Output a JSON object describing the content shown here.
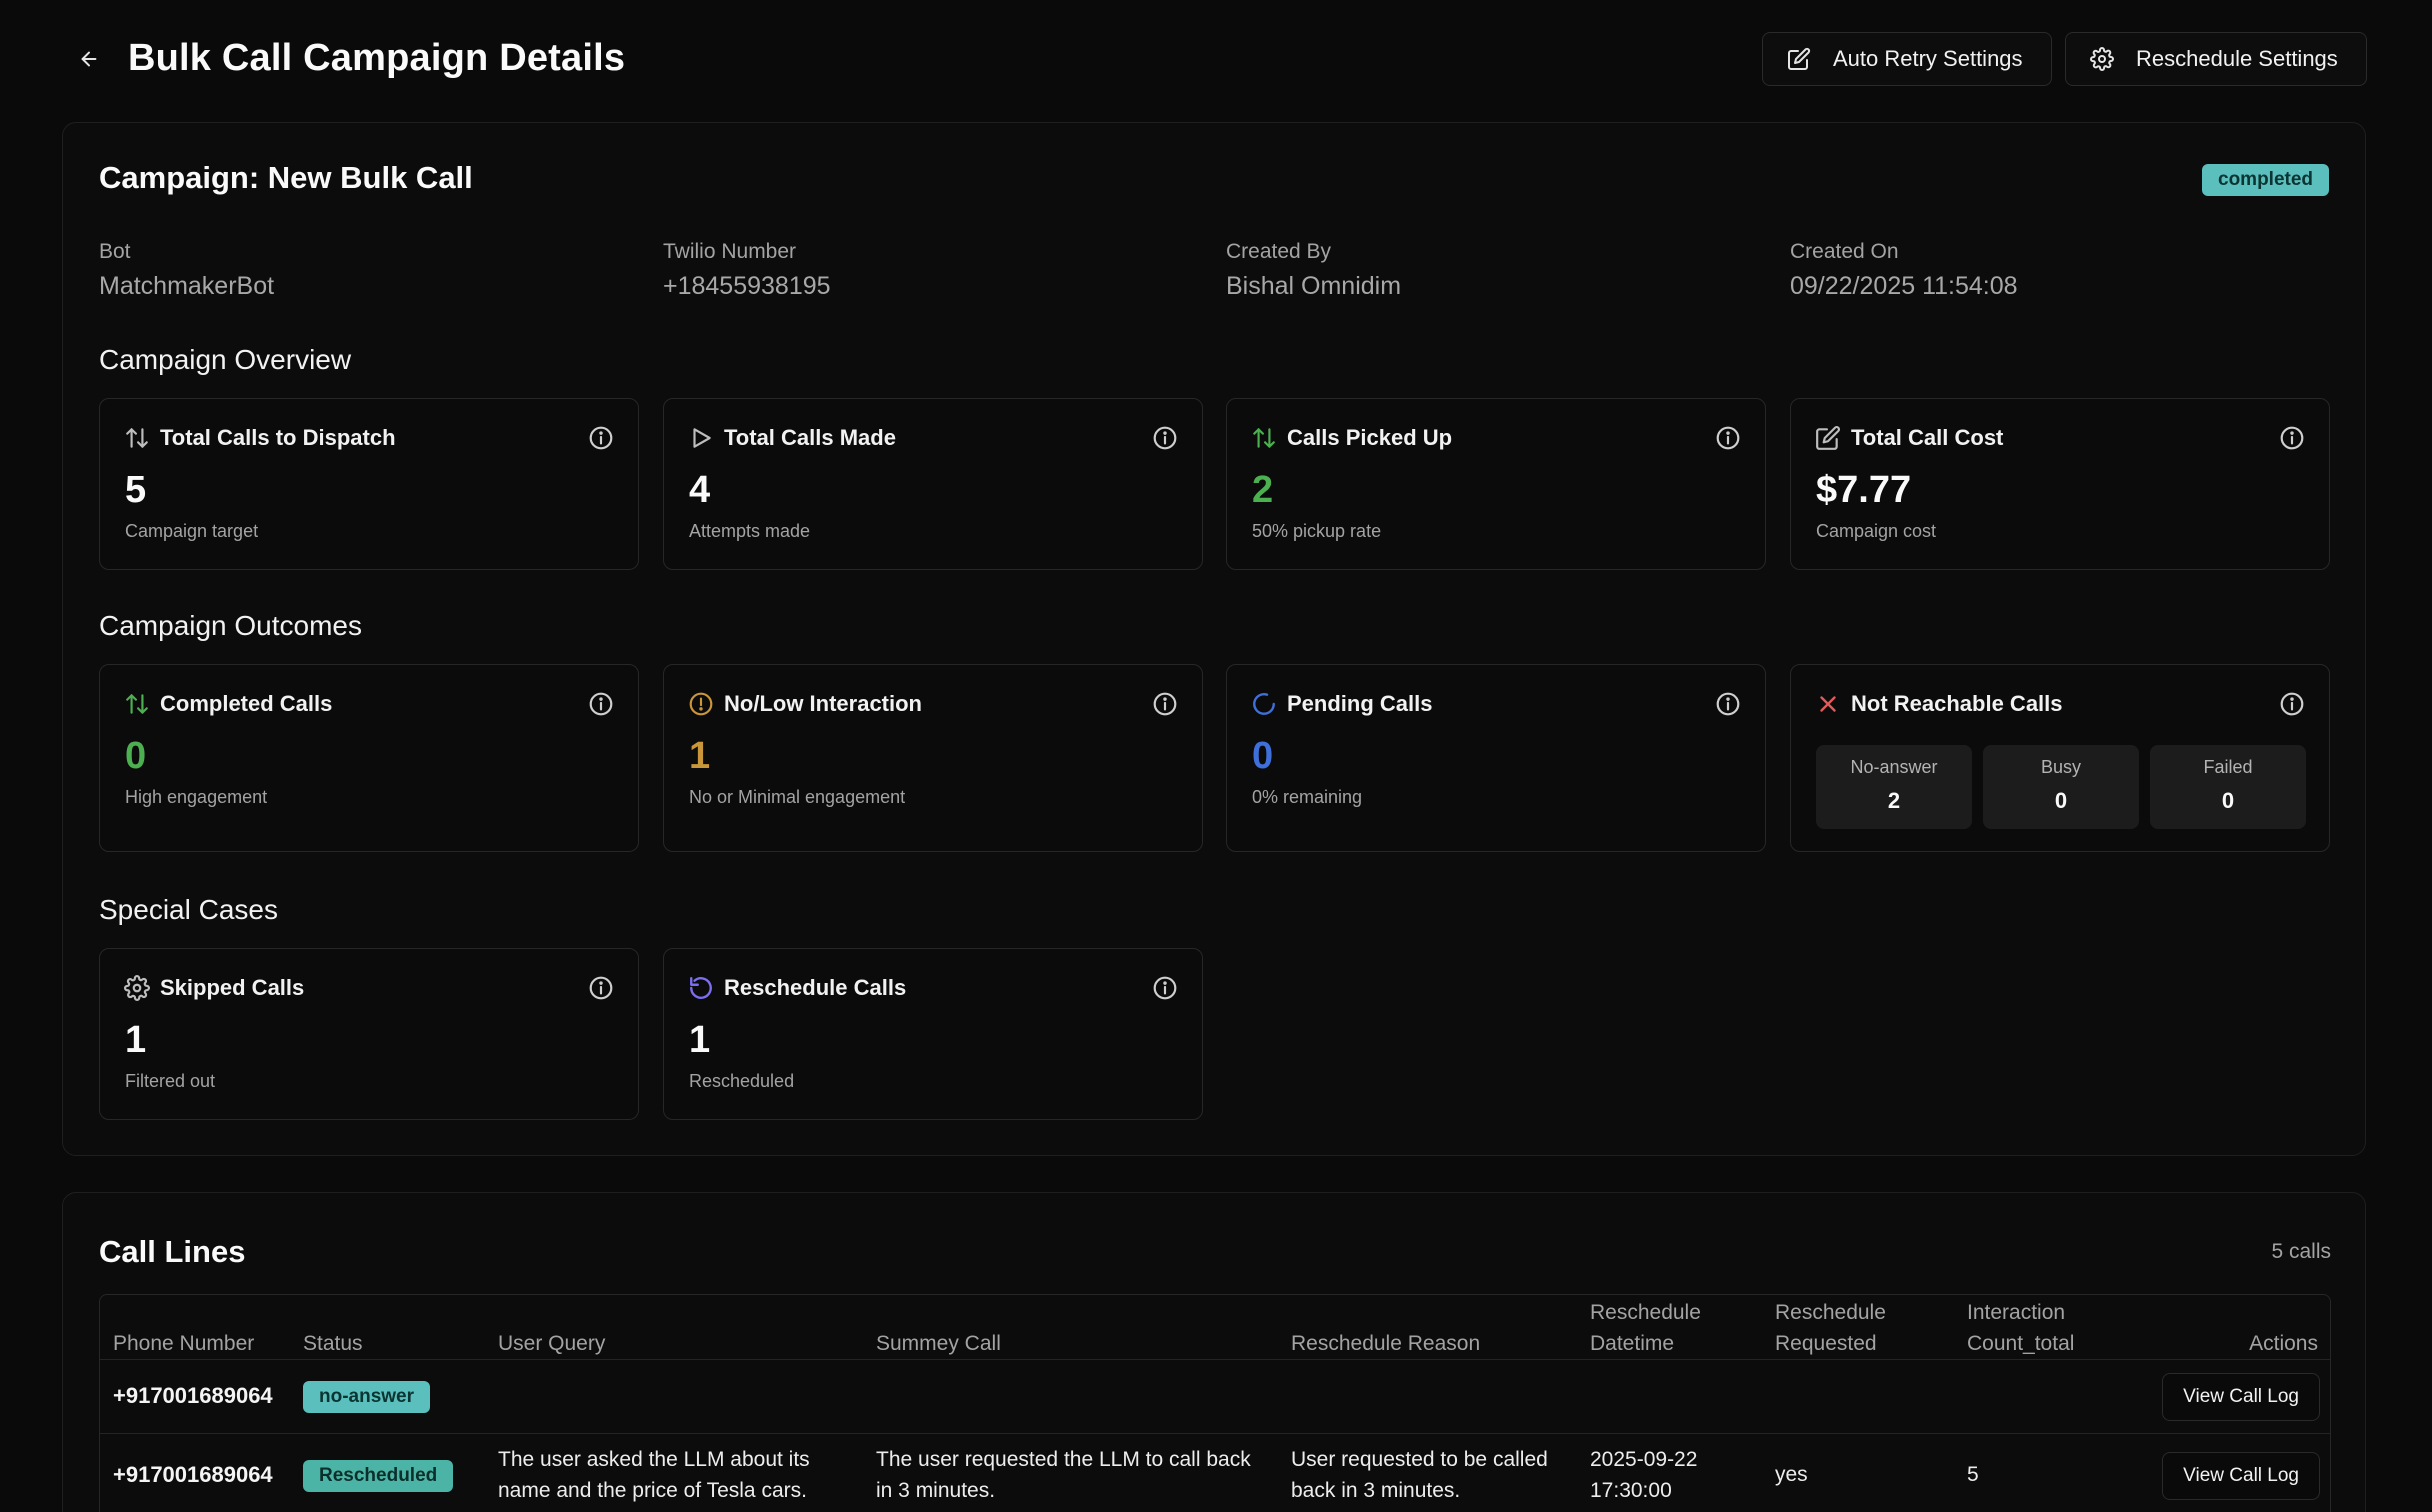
{
  "header": {
    "title": "Bulk Call Campaign Details",
    "auto_retry_label": "Auto Retry Settings",
    "reschedule_label": "Reschedule Settings"
  },
  "campaign": {
    "name": "Campaign: New Bulk Call",
    "status": "completed",
    "meta": [
      {
        "label": "Bot",
        "value": "MatchmakerBot"
      },
      {
        "label": "Twilio Number",
        "value": "+18455938195"
      },
      {
        "label": "Created By",
        "value": "Bishal Omnidim"
      },
      {
        "label": "Created On",
        "value": "09/22/2025 11:54:08"
      }
    ]
  },
  "overview": {
    "title": "Campaign Overview",
    "stats": [
      {
        "title": "Total Calls to Dispatch",
        "value": "5",
        "sub": "Campaign target",
        "icon": "arrows-up-down-icon",
        "color": "#fafafa"
      },
      {
        "title": "Total Calls Made",
        "value": "4",
        "sub": "Attempts made",
        "icon": "play-icon",
        "color": "#fafafa"
      },
      {
        "title": "Calls Picked Up",
        "value": "2",
        "sub": "50% pickup rate",
        "icon": "arrows-up-down-icon",
        "color": "#4caf50"
      },
      {
        "title": "Total Call Cost",
        "value": "$7.77",
        "sub": "Campaign cost",
        "icon": "edit-icon",
        "color": "#fafafa"
      }
    ]
  },
  "outcomes": {
    "title": "Campaign Outcomes",
    "stats": [
      {
        "title": "Completed Calls",
        "value": "0",
        "sub": "High engagement",
        "icon": "arrows-up-down-icon",
        "color": "#4caf50"
      },
      {
        "title": "No/Low Interaction",
        "value": "1",
        "sub": "No or Minimal engagement",
        "icon": "alert-circle-icon",
        "color": "#c9963a"
      },
      {
        "title": "Pending Calls",
        "value": "0",
        "sub": "0% remaining",
        "icon": "loader-icon",
        "color": "#3f6fd8"
      }
    ],
    "not_reachable": {
      "title": "Not Reachable Calls",
      "icon": "x-icon",
      "items": [
        {
          "label": "No-answer",
          "value": "2"
        },
        {
          "label": "Busy",
          "value": "0"
        },
        {
          "label": "Failed",
          "value": "0"
        }
      ]
    }
  },
  "special": {
    "title": "Special Cases",
    "stats": [
      {
        "title": "Skipped Calls",
        "value": "1",
        "sub": "Filtered out",
        "icon": "gear-icon",
        "color": "#fafafa"
      },
      {
        "title": "Reschedule Calls",
        "value": "1",
        "sub": "Rescheduled",
        "icon": "rotate-icon",
        "color": "#fafafa"
      }
    ]
  },
  "call_lines": {
    "title": "Call Lines",
    "count": "5 calls",
    "columns": {
      "phone": "Phone Number",
      "status": "Status",
      "query": "User Query",
      "summary": "Summey Call",
      "reason": "Reschedule Reason",
      "datetime_1": "Reschedule",
      "datetime_2": "Datetime",
      "requested_1": "Reschedule",
      "requested_2": "Requested",
      "interaction_1": "Interaction",
      "interaction_2": "Count_total",
      "actions": "Actions"
    },
    "rows": [
      {
        "phone": "+917001689064",
        "status": "no-answer",
        "query": "",
        "summary": "",
        "reason": "",
        "datetime_1": "",
        "datetime_2": "",
        "requested": "",
        "interaction": "",
        "action": "View Call Log"
      },
      {
        "phone": "+917001689064",
        "status": "Rescheduled",
        "query_1": "The user asked the LLM about its",
        "query_2": "name and the price of Tesla cars.",
        "summary_1": "The user requested the LLM to call back",
        "summary_2": "in 3 minutes.",
        "reason_1": "User requested to be called",
        "reason_2": "back in 3 minutes.",
        "datetime_1": "2025-09-22",
        "datetime_2": "17:30:00",
        "requested": "yes",
        "interaction": "5",
        "action": "View Call Log"
      }
    ]
  }
}
